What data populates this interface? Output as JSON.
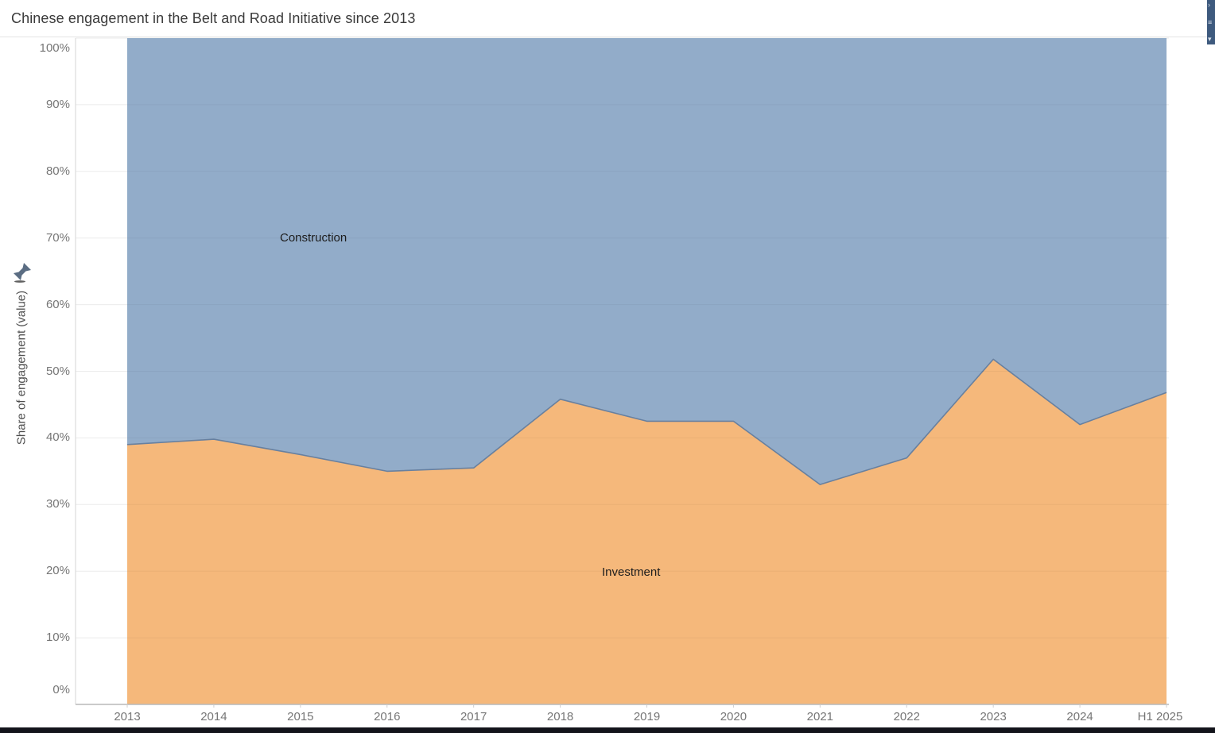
{
  "header": {
    "title": "Chinese engagement in the Belt and Road Initiative since 2013"
  },
  "side_panel": {
    "icons": [
      "chevron-right-icon",
      "handle-icon",
      "caret-down-icon"
    ],
    "glyphs": [
      "›",
      "≡",
      "▾"
    ],
    "color": "#3e5a7e"
  },
  "chart_data": {
    "type": "area",
    "variant": "100%-stacked",
    "title": "Chinese engagement in the Belt and Road Initiative since 2013",
    "xlabel": "",
    "ylabel": "Share of engagement (value)",
    "ylim": [
      0,
      100
    ],
    "grid": true,
    "legend_position": "in-plot-labels",
    "x": [
      "2013",
      "2014",
      "2015",
      "2016",
      "2017",
      "2018",
      "2019",
      "2020",
      "2021",
      "2022",
      "2023",
      "2024",
      "H1 2025"
    ],
    "y_ticks": [
      "0%",
      "10%",
      "20%",
      "30%",
      "40%",
      "50%",
      "60%",
      "70%",
      "80%",
      "90%",
      "100%"
    ],
    "series": [
      {
        "name": "Construction",
        "position": "top",
        "color": "#92acc9",
        "values": [
          61,
          60.2,
          62.5,
          65,
          64.5,
          54.2,
          57.5,
          57.5,
          67,
          63,
          48.2,
          58,
          53.2
        ]
      },
      {
        "name": "Investment",
        "position": "bottom",
        "color": "#f5b87b",
        "values": [
          39,
          39.8,
          37.5,
          35,
          35.5,
          45.8,
          42.5,
          42.5,
          33,
          37,
          51.8,
          42,
          46.8
        ]
      }
    ],
    "boundary_line_color": "#68809f",
    "axis_line_color": "#b9b9b9",
    "gridline_color": "#ebebeb",
    "tick_label_color": "#767676"
  }
}
